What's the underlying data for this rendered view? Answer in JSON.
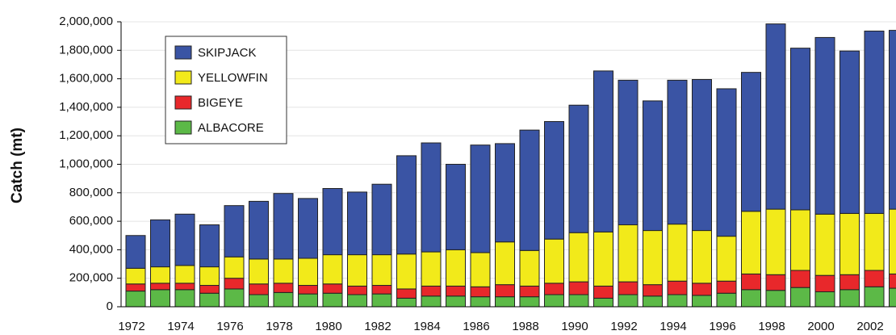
{
  "chart_data": {
    "type": "stacked_bar",
    "y_label": "Catch (mt)",
    "categories": [
      "1972",
      null,
      "1974",
      null,
      "1976",
      null,
      "1978",
      null,
      "1980",
      null,
      "1982",
      null,
      "1984",
      null,
      "1986",
      null,
      "1988",
      null,
      "1990",
      null,
      "1992",
      null,
      "1994",
      null,
      "1996",
      null,
      "1998",
      null,
      "2000",
      null,
      "2002",
      null
    ],
    "series": [
      {
        "name": "ALBACORE",
        "color": "#5cb947",
        "values": [
          110000,
          120000,
          120000,
          95000,
          125000,
          85000,
          100000,
          90000,
          95000,
          85000,
          90000,
          60000,
          75000,
          75000,
          70000,
          70000,
          70000,
          85000,
          85000,
          60000,
          85000,
          75000,
          85000,
          80000,
          95000,
          120000,
          115000,
          135000,
          105000,
          120000,
          140000,
          130000
        ]
      },
      {
        "name": "BIGEYE",
        "color": "#e8282b",
        "values": [
          50000,
          45000,
          45000,
          55000,
          75000,
          75000,
          65000,
          60000,
          65000,
          60000,
          60000,
          65000,
          70000,
          70000,
          70000,
          85000,
          75000,
          80000,
          90000,
          85000,
          90000,
          80000,
          95000,
          85000,
          85000,
          110000,
          110000,
          120000,
          115000,
          105000,
          115000,
          100000
        ]
      },
      {
        "name": "YELLOWFIN",
        "color": "#f2ea1a",
        "values": [
          110000,
          115000,
          125000,
          130000,
          150000,
          175000,
          170000,
          190000,
          205000,
          220000,
          215000,
          245000,
          240000,
          255000,
          240000,
          300000,
          250000,
          310000,
          345000,
          380000,
          400000,
          380000,
          400000,
          370000,
          315000,
          440000,
          460000,
          425000,
          430000,
          430000,
          400000,
          455000
        ]
      },
      {
        "name": "SKIPJACK",
        "color": "#3a54a4",
        "values": [
          230000,
          330000,
          360000,
          295000,
          360000,
          405000,
          460000,
          420000,
          465000,
          440000,
          495000,
          690000,
          765000,
          600000,
          755000,
          690000,
          845000,
          825000,
          895000,
          1130000,
          1015000,
          910000,
          1010000,
          1060000,
          1035000,
          975000,
          1300000,
          1135000,
          1240000,
          1140000,
          1280000,
          1255000
        ]
      }
    ],
    "ylim": [
      0,
      2000000
    ],
    "yticks": [
      0,
      {
        "value": 200000,
        "label": "200,000"
      },
      {
        "value": 400000,
        "label": "400,000"
      },
      {
        "value": 600000,
        "label": "600,000"
      },
      {
        "value": 800000,
        "label": "800,000"
      },
      {
        "value": 1000000,
        "label": "1,000,000"
      },
      {
        "value": 1200000,
        "label": "1,200,000"
      },
      {
        "value": 1400000,
        "label": "1,400,000"
      },
      {
        "value": 1600000,
        "label": "1,600,000"
      },
      {
        "value": 1800000,
        "label": "1,800,000"
      },
      {
        "value": 2000000,
        "label": "2,000,000"
      }
    ],
    "grid": true,
    "legend": "upper left"
  }
}
